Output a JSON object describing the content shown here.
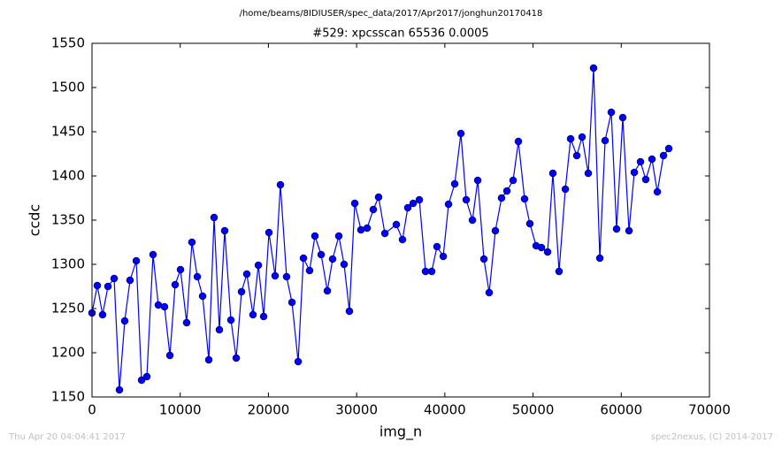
{
  "chart_data": {
    "type": "line",
    "suptitle": "/home/beams/8IDIUSER/spec_data/2017/Apr2017/jonghun20170418",
    "title": "#529: xpcsscan 65536 0.0005",
    "x_label": "img_n",
    "y_label": "ccdc",
    "footer_left": "Thu Apr 20 04:04:41 2017",
    "footer_right": "spec2nexus, (C) 2014-2017",
    "xlim": [
      0,
      70000
    ],
    "xticks": [
      0,
      10000,
      20000,
      30000,
      40000,
      50000,
      60000,
      70000
    ],
    "ylim": [
      1150,
      1550
    ],
    "yticks": [
      1150,
      1200,
      1250,
      1300,
      1350,
      1400,
      1450,
      1500,
      1550
    ],
    "series": [
      {
        "color": "#0000ff",
        "x": [
          0,
          600,
          1200,
          1810,
          2510,
          3110,
          3710,
          4310,
          5020,
          5620,
          6220,
          6920,
          7520,
          8220,
          8830,
          9430,
          10030,
          10730,
          11330,
          11940,
          12540,
          13240,
          13840,
          14440,
          15040,
          15750,
          16350,
          16950,
          17550,
          18250,
          18860,
          19460,
          20060,
          20760,
          21360,
          22060,
          22670,
          23370,
          23970,
          24670,
          25270,
          25980,
          26680,
          27280,
          27980,
          28580,
          29180,
          29790,
          30490,
          31190,
          31890,
          32490,
          33200,
          34500,
          35200,
          35800,
          36410,
          37110,
          37810,
          38510,
          39110,
          39820,
          40420,
          41120,
          41820,
          42420,
          43130,
          43730,
          44430,
          45030,
          45730,
          46430,
          47040,
          47740,
          48340,
          49040,
          49640,
          50350,
          50950,
          51650,
          52250,
          52950,
          53660,
          54260,
          54960,
          55560,
          56260,
          56860,
          57570,
          58170,
          58870,
          59470,
          60170,
          60880,
          61480,
          62180,
          62780,
          63480,
          64090,
          64790,
          65390
        ],
        "values": [
          1245,
          1276,
          1243,
          1275,
          1284,
          1158,
          1236,
          1282,
          1304,
          1169,
          1173,
          1311,
          1254,
          1252,
          1197,
          1277,
          1294,
          1234,
          1325,
          1286,
          1264,
          1192,
          1353,
          1226,
          1338,
          1237,
          1194,
          1269,
          1289,
          1243,
          1299,
          1241,
          1336,
          1287,
          1390,
          1286,
          1257,
          1190,
          1307,
          1293,
          1332,
          1311,
          1270,
          1306,
          1332,
          1300,
          1247,
          1369,
          1339,
          1341,
          1362,
          1376,
          1335,
          1345,
          1328,
          1364,
          1369,
          1373,
          1292,
          1292,
          1320,
          1309,
          1368,
          1391,
          1448,
          1373,
          1350,
          1395,
          1306,
          1268,
          1338,
          1375,
          1383,
          1395,
          1439,
          1374,
          1346,
          1321,
          1319,
          1314,
          1403,
          1292,
          1385,
          1442,
          1423,
          1444,
          1403,
          1522,
          1307,
          1440,
          1472,
          1340,
          1466,
          1338,
          1404,
          1416,
          1396,
          1419,
          1382,
          1423,
          1431
        ]
      }
    ]
  }
}
